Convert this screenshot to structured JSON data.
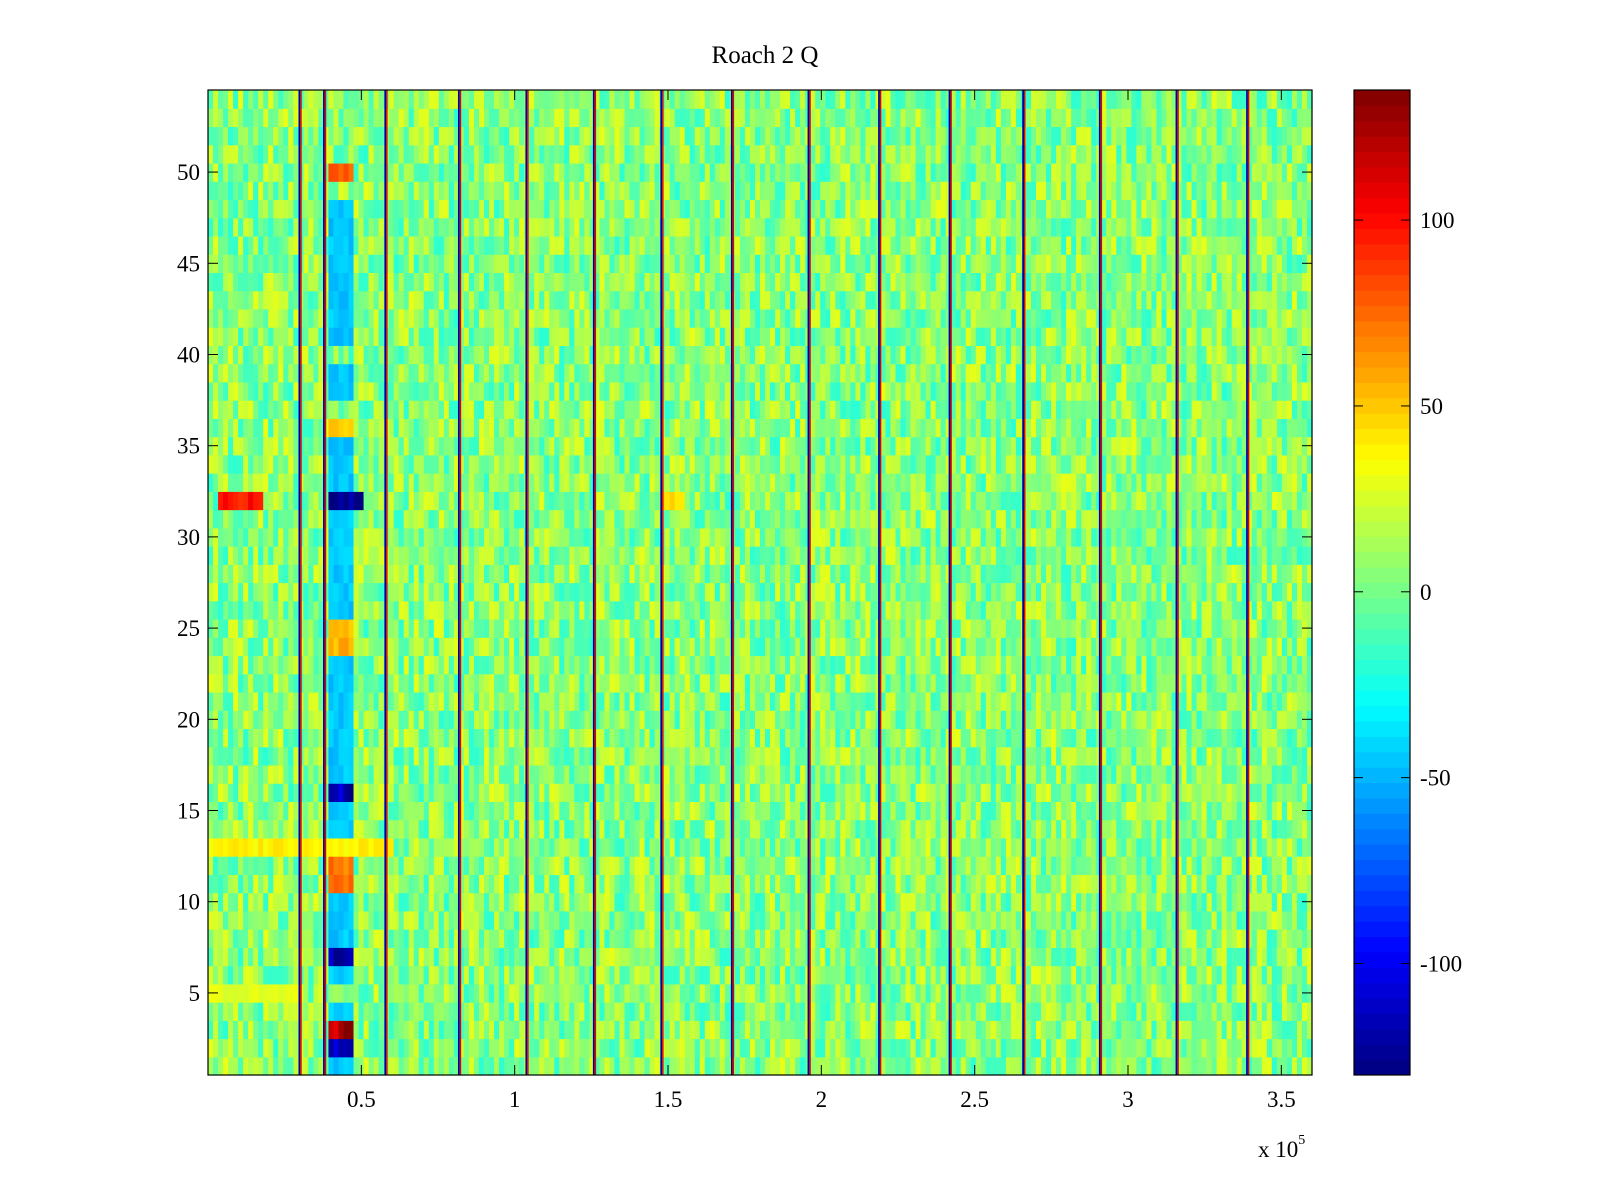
{
  "figure": {
    "title": "Roach 2 Q",
    "x_multiplier_base": "x 10",
    "x_multiplier_exp": "5"
  },
  "chart_data": {
    "type": "heatmap",
    "title": "Roach 2 Q",
    "xlabel": "",
    "ylabel": "",
    "xlim": [
      0,
      3.6
    ],
    "x_scale_note": "x 10^5",
    "ylim": [
      0.5,
      54.5
    ],
    "x_ticks": [
      0.5,
      1,
      1.5,
      2,
      2.5,
      3,
      3.5
    ],
    "x_tick_labels": [
      "0.5",
      "1",
      "1.5",
      "2",
      "2.5",
      "3",
      "3.5"
    ],
    "y_ticks": [
      5,
      10,
      15,
      20,
      25,
      30,
      35,
      40,
      45,
      50
    ],
    "y_tick_labels": [
      "5",
      "10",
      "15",
      "20",
      "25",
      "30",
      "35",
      "40",
      "45",
      "50"
    ],
    "rows": 54,
    "colormap": "jet",
    "color_range": [
      -130,
      135
    ],
    "colorbar": {
      "ticks": [
        -100,
        -50,
        0,
        50,
        100
      ],
      "tick_labels": [
        "-100",
        "-50",
        "0",
        "50",
        "100"
      ],
      "location": "right"
    },
    "background_value": 5,
    "vertical_boundaries_x": [
      0.3,
      0.38,
      0.58,
      0.82,
      1.04,
      1.26,
      1.48,
      1.71,
      1.96,
      2.19,
      2.42,
      2.66,
      2.91,
      3.16,
      3.39
    ],
    "strong_features": [
      {
        "rows": [
          32
        ],
        "x": [
          0.03,
          0.18
        ],
        "value": 95
      },
      {
        "rows": [
          32
        ],
        "x": [
          0.4,
          0.5
        ],
        "value": -125
      },
      {
        "rows": [
          3
        ],
        "x": [
          0.4,
          0.48
        ],
        "value": 125
      },
      {
        "rows": [
          2
        ],
        "x": [
          0.4,
          0.48
        ],
        "value": -110
      },
      {
        "rows": [
          7
        ],
        "x": [
          0.4,
          0.48
        ],
        "value": -120
      },
      {
        "rows": [
          16
        ],
        "x": [
          0.4,
          0.48
        ],
        "value": -120
      },
      {
        "rows": [
          11,
          12
        ],
        "x": [
          0.4,
          0.48
        ],
        "value": 70
      },
      {
        "rows": [
          24,
          25
        ],
        "x": [
          0.4,
          0.48
        ],
        "value": 55
      },
      {
        "rows": [
          50
        ],
        "x": [
          0.4,
          0.48
        ],
        "value": 75
      },
      {
        "rows": [
          36
        ],
        "x": [
          0.4,
          0.48
        ],
        "value": 50
      },
      {
        "rows": [
          13
        ],
        "x": [
          0.0,
          0.6
        ],
        "value": 38
      },
      {
        "rows": [
          5
        ],
        "x": [
          0.0,
          0.3
        ],
        "value": 28
      },
      {
        "rows": [
          32
        ],
        "x": [
          1.48,
          1.55
        ],
        "value": 45
      },
      {
        "rows": [
          48,
          47,
          46,
          45,
          44,
          43,
          42,
          41,
          39,
          38,
          35,
          34,
          33,
          31,
          30,
          29,
          28,
          27,
          26,
          23,
          22,
          21,
          20,
          19,
          18,
          17,
          15,
          14,
          10,
          9,
          8,
          6,
          4,
          1
        ],
        "x": [
          0.4,
          0.48
        ],
        "value": -45
      }
    ]
  }
}
